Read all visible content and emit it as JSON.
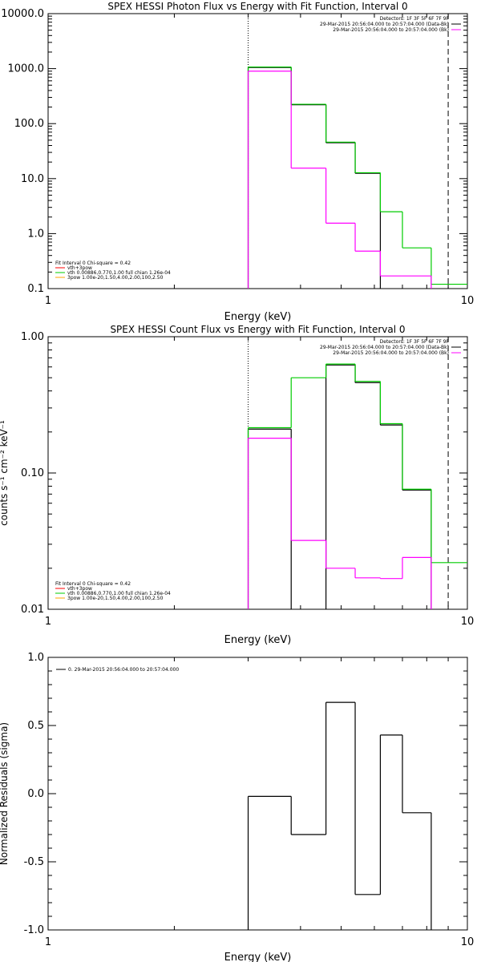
{
  "chart_data": [
    {
      "type": "line",
      "title": "SPEX HESSI Photon Flux vs Energy with Fit Function, Interval 0",
      "xlabel": "Energy (keV)",
      "ylabel": "",
      "xscale": "log",
      "yscale": "log",
      "xlim": [
        1,
        10
      ],
      "ylim": [
        0.1,
        10000
      ],
      "x_tick_labels": [
        "1",
        "10"
      ],
      "y_tick_labels": [
        "0.1",
        "1.0",
        "10.0",
        "100.0",
        "1000.0",
        "10000.0"
      ],
      "fit_start_energy": 3.0,
      "fit_end_energy": 9.0,
      "legend_right": [
        {
          "text": "Detectors: 1F 3F 5F 6F 7F 9F",
          "color": ""
        },
        {
          "text": "29-Mar-2015 20:56:04.000 to 20:57:04.000 (Data-Bk)",
          "color": "#000000"
        },
        {
          "text": "29-Mar-2015 20:56:04.000 to 20:57:04.000 (Bk)",
          "color": "#ff00ff"
        }
      ],
      "legend_left": [
        {
          "text": "Fit Interval 0   Chi-square = 0.42",
          "color": ""
        },
        {
          "text": "vth+3pow",
          "color": "#ff0000"
        },
        {
          "text": "vth 0.00886,0.770,1.00  full chian 1.26e-04",
          "color": "#00cc00"
        },
        {
          "text": "3pow 1.00e-20,1.50,4.00,2.00,100,2.50",
          "color": "#ffa500"
        }
      ],
      "bin_edges": [
        3.0,
        3.8,
        4.6,
        5.4,
        6.2,
        7.0,
        8.2,
        9.0,
        10.0
      ],
      "series": [
        {
          "name": "Data-Bk",
          "color": "#000000",
          "values": [
            1050,
            220,
            45,
            12.5,
            null,
            null,
            null,
            null
          ]
        },
        {
          "name": "vth 0.00886,0.770,1.00  full chian 1.26e-04",
          "color": "#00cc00",
          "values": [
            1070,
            225,
            46,
            12.8,
            2.5,
            0.55,
            0.12,
            0.12
          ]
        },
        {
          "name": "Bk",
          "color": "#ff00ff",
          "values": [
            900,
            15.5,
            1.55,
            0.48,
            0.17,
            0.17,
            null,
            null
          ]
        }
      ]
    },
    {
      "type": "line",
      "title": "SPEX HESSI Count Flux vs Energy with Fit Function, Interval 0",
      "xlabel": "Energy (keV)",
      "ylabel": "counts s⁻¹ cm⁻² keV⁻¹",
      "xscale": "log",
      "yscale": "log",
      "xlim": [
        1,
        10
      ],
      "ylim": [
        0.01,
        1.0
      ],
      "x_tick_labels": [
        "1",
        "10"
      ],
      "y_tick_labels": [
        "0.01",
        "0.10",
        "1.00"
      ],
      "fit_start_energy": 3.0,
      "fit_end_energy": 9.0,
      "legend_right": [
        {
          "text": "Detectors: 1F 3F 5F 6F 7F 9F",
          "color": ""
        },
        {
          "text": "29-Mar-2015 20:56:04.000 to 20:57:04.000 (Data-Bk)",
          "color": "#000000"
        },
        {
          "text": "29-Mar-2015 20:56:04.000 to 20:57:04.000 (Bk)",
          "color": "#ff00ff"
        }
      ],
      "legend_left": [
        {
          "text": "Fit Interval 0   Chi-square = 0.42",
          "color": ""
        },
        {
          "text": "vth+3pow",
          "color": "#ff0000"
        },
        {
          "text": "vth 0.00886,0.770,1.00  full chian 1.26e-04",
          "color": "#00cc00"
        },
        {
          "text": "3pow 1.00e-20,1.50,4.00,2.00,100,2.50",
          "color": "#ffa500"
        }
      ],
      "bin_edges": [
        3.0,
        3.8,
        4.6,
        5.4,
        6.2,
        7.0,
        8.2,
        9.0,
        10.0
      ],
      "series": [
        {
          "name": "Data-Bk",
          "color": "#000000",
          "values": [
            0.21,
            null,
            0.62,
            0.46,
            0.225,
            0.075,
            null,
            null
          ]
        },
        {
          "name": "vth 0.00886,0.770,1.00  full chian 1.26e-04",
          "color": "#00cc00",
          "values": [
            0.215,
            0.5,
            0.63,
            0.47,
            0.23,
            0.076,
            0.022,
            0.022
          ]
        },
        {
          "name": "Bk",
          "color": "#ff00ff",
          "values": [
            0.18,
            0.032,
            0.02,
            0.017,
            0.0168,
            0.024,
            null,
            null
          ]
        }
      ]
    },
    {
      "type": "line",
      "title": "",
      "xlabel": "Energy (keV)",
      "ylabel": "Normalized Residuals (sigma)",
      "xscale": "log",
      "yscale": "linear",
      "xlim": [
        1,
        10
      ],
      "ylim": [
        -1.0,
        1.0
      ],
      "x_tick_labels": [
        "1",
        "10"
      ],
      "y_tick_labels": [
        "-1.0",
        "-0.5",
        "0.0",
        "0.5",
        "1.0"
      ],
      "legend_left": [
        {
          "text": "0. 29-Mar-2015 20:56:04.000 to 20:57:04.000",
          "color": "#000000"
        }
      ],
      "bin_edges": [
        3.0,
        3.8,
        4.6,
        5.4,
        6.2,
        7.0,
        8.2,
        9.0
      ],
      "series": [
        {
          "name": "0. 29-Mar-2015 20:56:04.000 to 20:57:04.000",
          "color": "#000000",
          "values": [
            -0.02,
            -0.3,
            0.67,
            -0.74,
            0.43,
            -0.14,
            null
          ]
        }
      ]
    }
  ]
}
